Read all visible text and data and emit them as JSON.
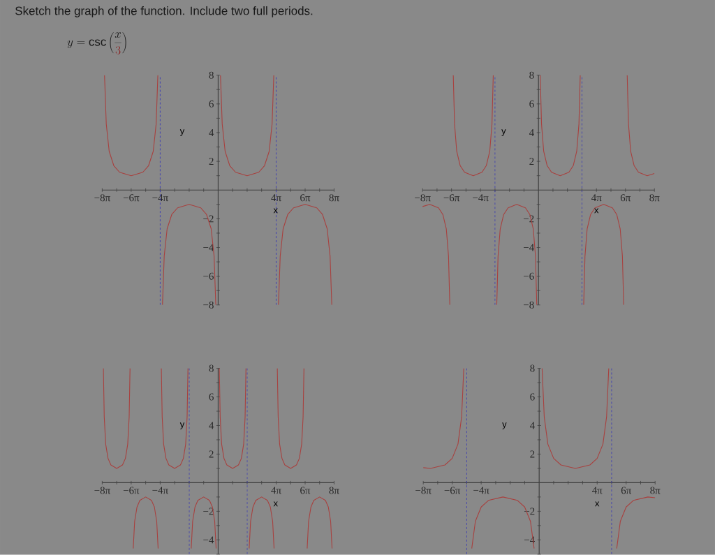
{
  "chart_data": [
    {
      "type": "line",
      "title": "Sketch the graph of the function. Include two full periods.",
      "subtitle": "y = \\csc\\left(\\frac{x}{{\\color[HTML]{8B1A1A}3}}\\right)",
      "xlabel": "x",
      "ylabel": "y",
      "xlim": [
        -25.13,
        25.13
      ],
      "ylim": [
        -8,
        8
      ],
      "xticks": [
        {
          "value": -25.13,
          "label": "−8π"
        },
        {
          "value": -21.99,
          "label": null
        },
        {
          "value": -18.85,
          "label": "−6π"
        },
        {
          "value": -15.71,
          "label": null
        },
        {
          "value": -12.57,
          "label": "−4π"
        },
        {
          "value": -9.42,
          "label": null
        },
        {
          "value": -6.28,
          "label": null
        },
        {
          "value": -3.14,
          "label": null
        },
        {
          "value": 0,
          "label": null
        },
        {
          "value": 3.14,
          "label": null
        },
        {
          "value": 6.28,
          "label": null
        },
        {
          "value": 9.42,
          "label": null
        },
        {
          "value": 12.57,
          "label": "4π"
        },
        {
          "value": 15.71,
          "label": null
        },
        {
          "value": 18.85,
          "label": "6π"
        },
        {
          "value": 21.99,
          "label": null
        },
        {
          "value": 25.13,
          "label": "8π"
        }
      ],
      "yticks": [
        {
          "value": -8,
          "label": "−8"
        },
        {
          "value": -7,
          "label": null
        },
        {
          "value": -6,
          "label": "−6"
        },
        {
          "value": -5,
          "label": null
        },
        {
          "value": -4,
          "label": "−4"
        },
        {
          "value": -3,
          "label": null
        },
        {
          "value": -2,
          "label": "−2"
        },
        {
          "value": -1,
          "label": null
        },
        {
          "value": 0,
          "label": null
        },
        {
          "value": 1,
          "label": null
        },
        2,
        {
          "value": 3,
          "label": null
        },
        4,
        {
          "value": 5,
          "label": null
        },
        6,
        {
          "value": 7,
          "label": null
        },
        8
      ],
      "series": [
        {
          "color": "#a8413f",
          "x": [
            -24.63,
            -24.25,
            -23.62,
            -22.62,
            -21.36,
            -18.85,
            -16.33,
            -15.08,
            -14.07,
            -13.44,
            -13.07,
            -12.57,
            -12.07,
            -11.69,
            -11.06,
            -10.06,
            -8.8,
            -6.29,
            -3.77,
            -2.52,
            -1.51,
            -0.88,
            -0.51,
            0,
            0.5,
            0.88,
            1.51,
            2.51,
            3.77,
            6.28,
            8.8,
            10.05,
            11.06,
            11.69,
            12.06,
            12.57,
            13.07,
            13.45,
            14.08,
            15.08,
            16.34,
            18.85,
            21.37,
            22.62,
            23.63,
            24.26,
            24.63
          ],
          "values": [
            8.0,
            4.6,
            2.7,
            1.7,
            1.24,
            1,
            1.24,
            1.7,
            2.7,
            4.6,
            8.0,
            null,
            -8.0,
            -4.6,
            -2.7,
            -1.7,
            -1.24,
            -1,
            -1.24,
            -1.7,
            -2.7,
            -4.6,
            -8.0,
            null,
            8.0,
            4.6,
            2.7,
            1.7,
            1.24,
            1,
            1.24,
            1.7,
            2.7,
            4.6,
            8.0,
            null,
            -8.0,
            -4.6,
            -2.7,
            -1.7,
            -1.24,
            -1,
            -1.24,
            -1.7,
            -2.7,
            -4.6,
            -8.0
          ]
        }
      ],
      "ref_lines": [
        {
          "axis": "x",
          "value": -12.57,
          "color": "#3a3ab4",
          "line_style": "dashed"
        },
        {
          "axis": "x",
          "value": 12.57,
          "color": "#3a3ab4",
          "line_style": "dashed"
        }
      ]
    },
    {
      "type": "line",
      "xlabel": "x",
      "ylabel": "y",
      "xlim": [
        -25.13,
        25.13
      ],
      "ylim": [
        -8,
        8
      ],
      "xticks": [
        {
          "value": -25.13,
          "label": "−8π"
        },
        {
          "value": -21.99,
          "label": null
        },
        {
          "value": -18.85,
          "label": "−6π"
        },
        {
          "value": -15.71,
          "label": null
        },
        {
          "value": -12.57,
          "label": "−4π"
        },
        {
          "value": -9.42,
          "label": null
        },
        {
          "value": -6.28,
          "label": null
        },
        {
          "value": -3.14,
          "label": null
        },
        {
          "value": 0,
          "label": null
        },
        {
          "value": 3.14,
          "label": null
        },
        {
          "value": 6.28,
          "label": null
        },
        {
          "value": 9.42,
          "label": null
        },
        {
          "value": 12.57,
          "label": "4π"
        },
        {
          "value": 15.71,
          "label": null
        },
        {
          "value": 18.85,
          "label": "6π"
        },
        {
          "value": 21.99,
          "label": null
        },
        {
          "value": 25.13,
          "label": "8π"
        }
      ],
      "yticks": [
        {
          "value": -8,
          "label": "−8"
        },
        {
          "value": -7,
          "label": null
        },
        {
          "value": -6,
          "label": "−6"
        },
        {
          "value": -5,
          "label": null
        },
        {
          "value": -4,
          "label": "−4"
        },
        {
          "value": -3,
          "label": null
        },
        {
          "value": -2,
          "label": "−2"
        },
        {
          "value": -1,
          "label": null
        },
        {
          "value": 0,
          "label": null
        },
        {
          "value": 1,
          "label": null
        },
        2,
        {
          "value": 3,
          "label": null
        },
        4,
        {
          "value": 5,
          "label": null
        },
        6,
        {
          "value": 7,
          "label": null
        },
        8
      ],
      "series": [
        {
          "color": "#a8413f",
          "x": [
            -25.13,
            -23.56,
            -21.67,
            -20.73,
            -19.98,
            -19.5,
            -19.22,
            -18.85,
            -18.47,
            -18.19,
            -17.72,
            -16.97,
            -16.02,
            -14.14,
            -12.25,
            -11.31,
            -10.56,
            -10.08,
            -9.8,
            -9.42,
            -9.04,
            -8.76,
            -8.29,
            -7.54,
            -6.59,
            -4.71,
            -2.82,
            -1.88,
            -1.13,
            -0.65,
            -0.37,
            0,
            0.38,
            0.66,
            1.13,
            1.88,
            2.83,
            4.71,
            6.6,
            7.54,
            8.29,
            8.77,
            9.05,
            9.42,
            9.8,
            10.08,
            10.55,
            11.3,
            12.25,
            14.13,
            16.02,
            16.96,
            17.71,
            18.19,
            18.47,
            18.85,
            19.23,
            19.51,
            19.98,
            20.73,
            21.68,
            23.56,
            25.13
          ],
          "values": [
            -1.15,
            -1,
            -1.24,
            -1.7,
            -2.7,
            -4.6,
            -8.0,
            null,
            8.0,
            4.6,
            2.7,
            1.7,
            1.24,
            1,
            1.24,
            1.7,
            2.7,
            4.6,
            8.0,
            null,
            -8.0,
            -4.6,
            -2.7,
            -1.7,
            -1.24,
            -1,
            -1.24,
            -1.7,
            -2.7,
            -4.6,
            -8.0,
            null,
            8.0,
            4.6,
            2.7,
            1.7,
            1.24,
            1,
            1.24,
            1.7,
            2.7,
            4.6,
            8.0,
            null,
            -8.0,
            -4.6,
            -2.7,
            -1.7,
            -1.24,
            -1,
            -1.24,
            -1.7,
            -2.7,
            -4.6,
            -8.0,
            null,
            8.0,
            4.6,
            2.7,
            1.7,
            1.24,
            1,
            1.15
          ]
        }
      ],
      "ref_lines": [
        {
          "axis": "x",
          "value": -9.42,
          "color": "#3a3ab4",
          "line_style": "dashed"
        },
        {
          "axis": "x",
          "value": 9.42,
          "color": "#3a3ab4",
          "line_style": "dashed"
        }
      ]
    },
    {
      "type": "line",
      "xlabel": "x",
      "ylabel": "y",
      "xlim": [
        -25.13,
        25.13
      ],
      "ylim": [
        -5,
        8
      ],
      "xticks": [
        {
          "value": -25.13,
          "label": "−8π"
        },
        {
          "value": -21.99,
          "label": null
        },
        {
          "value": -18.85,
          "label": "−6π"
        },
        {
          "value": -15.71,
          "label": null
        },
        {
          "value": -12.57,
          "label": "−4π"
        },
        {
          "value": -9.42,
          "label": null
        },
        {
          "value": -6.28,
          "label": null
        },
        {
          "value": -3.14,
          "label": null
        },
        {
          "value": 0,
          "label": null
        },
        {
          "value": 3.14,
          "label": null
        },
        {
          "value": 6.28,
          "label": null
        },
        {
          "value": 9.42,
          "label": null
        },
        {
          "value": 12.57,
          "label": "4π"
        },
        {
          "value": 15.71,
          "label": null
        },
        {
          "value": 18.85,
          "label": "6π"
        },
        {
          "value": 21.99,
          "label": null
        },
        {
          "value": 25.13,
          "label": "8π"
        }
      ],
      "yticks": [
        {
          "value": -5,
          "label": null
        },
        {
          "value": -4,
          "label": "−4"
        },
        {
          "value": -3,
          "label": null
        },
        {
          "value": -2,
          "label": "−2"
        },
        {
          "value": -1,
          "label": null
        },
        {
          "value": 0,
          "label": null
        },
        {
          "value": 1,
          "label": null
        },
        2,
        {
          "value": 3,
          "label": null
        },
        4,
        {
          "value": 5,
          "label": null
        },
        6,
        {
          "value": 7,
          "label": null
        },
        8
      ],
      "series": [
        {
          "color": "#a8413f",
          "x": [
            -24.88,
            -24.69,
            -24.38,
            -23.87,
            -23.25,
            -21.99,
            -20.73,
            -20.1,
            -19.6,
            -19.29,
            -19.1,
            -18.85,
            -18.41,
            -18.1,
            -17.59,
            -16.97,
            -15.71,
            -14.45,
            -13.82,
            -13.32,
            -13.01,
            -12.57,
            -12.32,
            -12.13,
            -11.82,
            -11.31,
            -10.69,
            -9.43,
            -8.17,
            -7.54,
            -7.04,
            -6.73,
            -6.54,
            -6.28,
            -5.84,
            -5.53,
            -5.02,
            -4.4,
            -3.14,
            -1.88,
            -1.25,
            -0.75,
            -0.44,
            0,
            0.25,
            0.44,
            0.75,
            1.26,
            1.88,
            3.14,
            4.4,
            5.03,
            5.53,
            5.84,
            6.03,
            6.28,
            6.72,
            7.03,
            7.54,
            8.16,
            9.42,
            10.68,
            11.31,
            11.81,
            12.12,
            12.57,
            12.82,
            13.01,
            13.32,
            13.83,
            14.45,
            15.71,
            16.97,
            17.6,
            18.1,
            18.41,
            18.6,
            18.85,
            19.29,
            19.6,
            20.11,
            20.73,
            21.99,
            23.25,
            23.88,
            24.38,
            24.69
          ],
          "values": [
            8.0,
            4.6,
            2.7,
            1.7,
            1.24,
            1,
            1.24,
            1.7,
            2.7,
            4.6,
            8.0,
            null,
            -4.6,
            -2.7,
            -1.7,
            -1.24,
            -1,
            -1.24,
            -1.7,
            -2.7,
            -4.6,
            null,
            8.0,
            4.6,
            2.7,
            1.7,
            1.24,
            1,
            1.24,
            1.7,
            2.7,
            4.6,
            8.0,
            null,
            -4.6,
            -2.7,
            -1.7,
            -1.24,
            -1,
            -1.24,
            -1.7,
            -2.7,
            -4.6,
            null,
            8.0,
            4.6,
            2.7,
            1.7,
            1.24,
            1,
            1.24,
            1.7,
            2.7,
            4.6,
            8.0,
            null,
            -4.6,
            -2.7,
            -1.7,
            -1.24,
            -1,
            -1.24,
            -1.7,
            -2.7,
            -4.6,
            null,
            8.0,
            4.6,
            2.7,
            1.7,
            1.24,
            1,
            1.24,
            1.7,
            2.7,
            4.6,
            8.0,
            null,
            -4.6,
            -2.7,
            -1.7,
            -1.24,
            -1,
            -1.24,
            -1.7,
            -2.7,
            -4.6
          ]
        }
      ],
      "ref_lines": [
        {
          "axis": "x",
          "value": -6.28,
          "color": "#3a3ab4",
          "line_style": "dashed"
        },
        {
          "axis": "x",
          "value": 6.28,
          "color": "#3a3ab4",
          "line_style": "dashed"
        }
      ]
    },
    {
      "type": "line",
      "xlabel": "x",
      "ylabel": "y",
      "xlim": [
        -25.13,
        25.13
      ],
      "ylim": [
        -5,
        8
      ],
      "xticks": [
        {
          "value": -25.13,
          "label": "−8π"
        },
        {
          "value": -21.99,
          "label": null
        },
        {
          "value": -18.85,
          "label": "−6π"
        },
        {
          "value": -15.71,
          "label": null
        },
        {
          "value": -12.57,
          "label": "−4π"
        },
        {
          "value": -9.42,
          "label": null
        },
        {
          "value": -6.28,
          "label": null
        },
        {
          "value": -3.14,
          "label": null
        },
        {
          "value": 0,
          "label": null
        },
        {
          "value": 3.14,
          "label": null
        },
        {
          "value": 6.28,
          "label": null
        },
        {
          "value": 9.42,
          "label": null
        },
        {
          "value": 12.57,
          "label": "4π"
        },
        {
          "value": 15.71,
          "label": null
        },
        {
          "value": 18.85,
          "label": "6π"
        },
        {
          "value": 21.99,
          "label": null
        },
        {
          "value": 25.13,
          "label": "8π"
        }
      ],
      "yticks": [
        {
          "value": -5,
          "label": null
        },
        {
          "value": -4,
          "label": "−4"
        },
        {
          "value": -3,
          "label": null
        },
        {
          "value": -2,
          "label": "−2"
        },
        {
          "value": -1,
          "label": null
        },
        {
          "value": 0,
          "label": null
        },
        {
          "value": 1,
          "label": null
        },
        2,
        {
          "value": 3,
          "label": null
        },
        4,
        {
          "value": 5,
          "label": null
        },
        6,
        {
          "value": 7,
          "label": null
        },
        8
      ],
      "series": [
        {
          "color": "#a8413f",
          "x": [
            -25.13,
            -23.56,
            -20.42,
            -18.85,
            -17.6,
            -16.81,
            -16.34,
            -15.71,
            -14.61,
            -13.83,
            -12.57,
            -11.0,
            -7.86,
            -4.71,
            -3.14,
            -1.89,
            -1.1,
            0,
            0.63,
            1.1,
            1.88,
            3.14,
            4.71,
            7.85,
            11.0,
            12.57,
            13.82,
            14.61,
            15.08,
            15.71,
            16.81,
            17.59,
            18.85,
            20.42,
            23.56,
            25.13
          ],
          "values": [
            1.05,
            1,
            1.24,
            1.7,
            2.7,
            4.6,
            8.0,
            null,
            -4.6,
            -2.7,
            -1.7,
            -1.24,
            -1,
            -1.24,
            -1.7,
            -2.7,
            -4.6,
            null,
            8.0,
            4.6,
            2.7,
            1.7,
            1.24,
            1,
            1.24,
            1.7,
            2.7,
            4.6,
            8.0,
            null,
            -4.6,
            -2.7,
            -1.7,
            -1.24,
            -1,
            -1.05
          ]
        }
      ],
      "ref_lines": [
        {
          "axis": "x",
          "value": -15.71,
          "color": "#3a3ab4",
          "line_style": "dashed"
        },
        {
          "axis": "x",
          "value": 15.71,
          "color": "#3a3ab4",
          "line_style": "dashed"
        }
      ]
    }
  ]
}
